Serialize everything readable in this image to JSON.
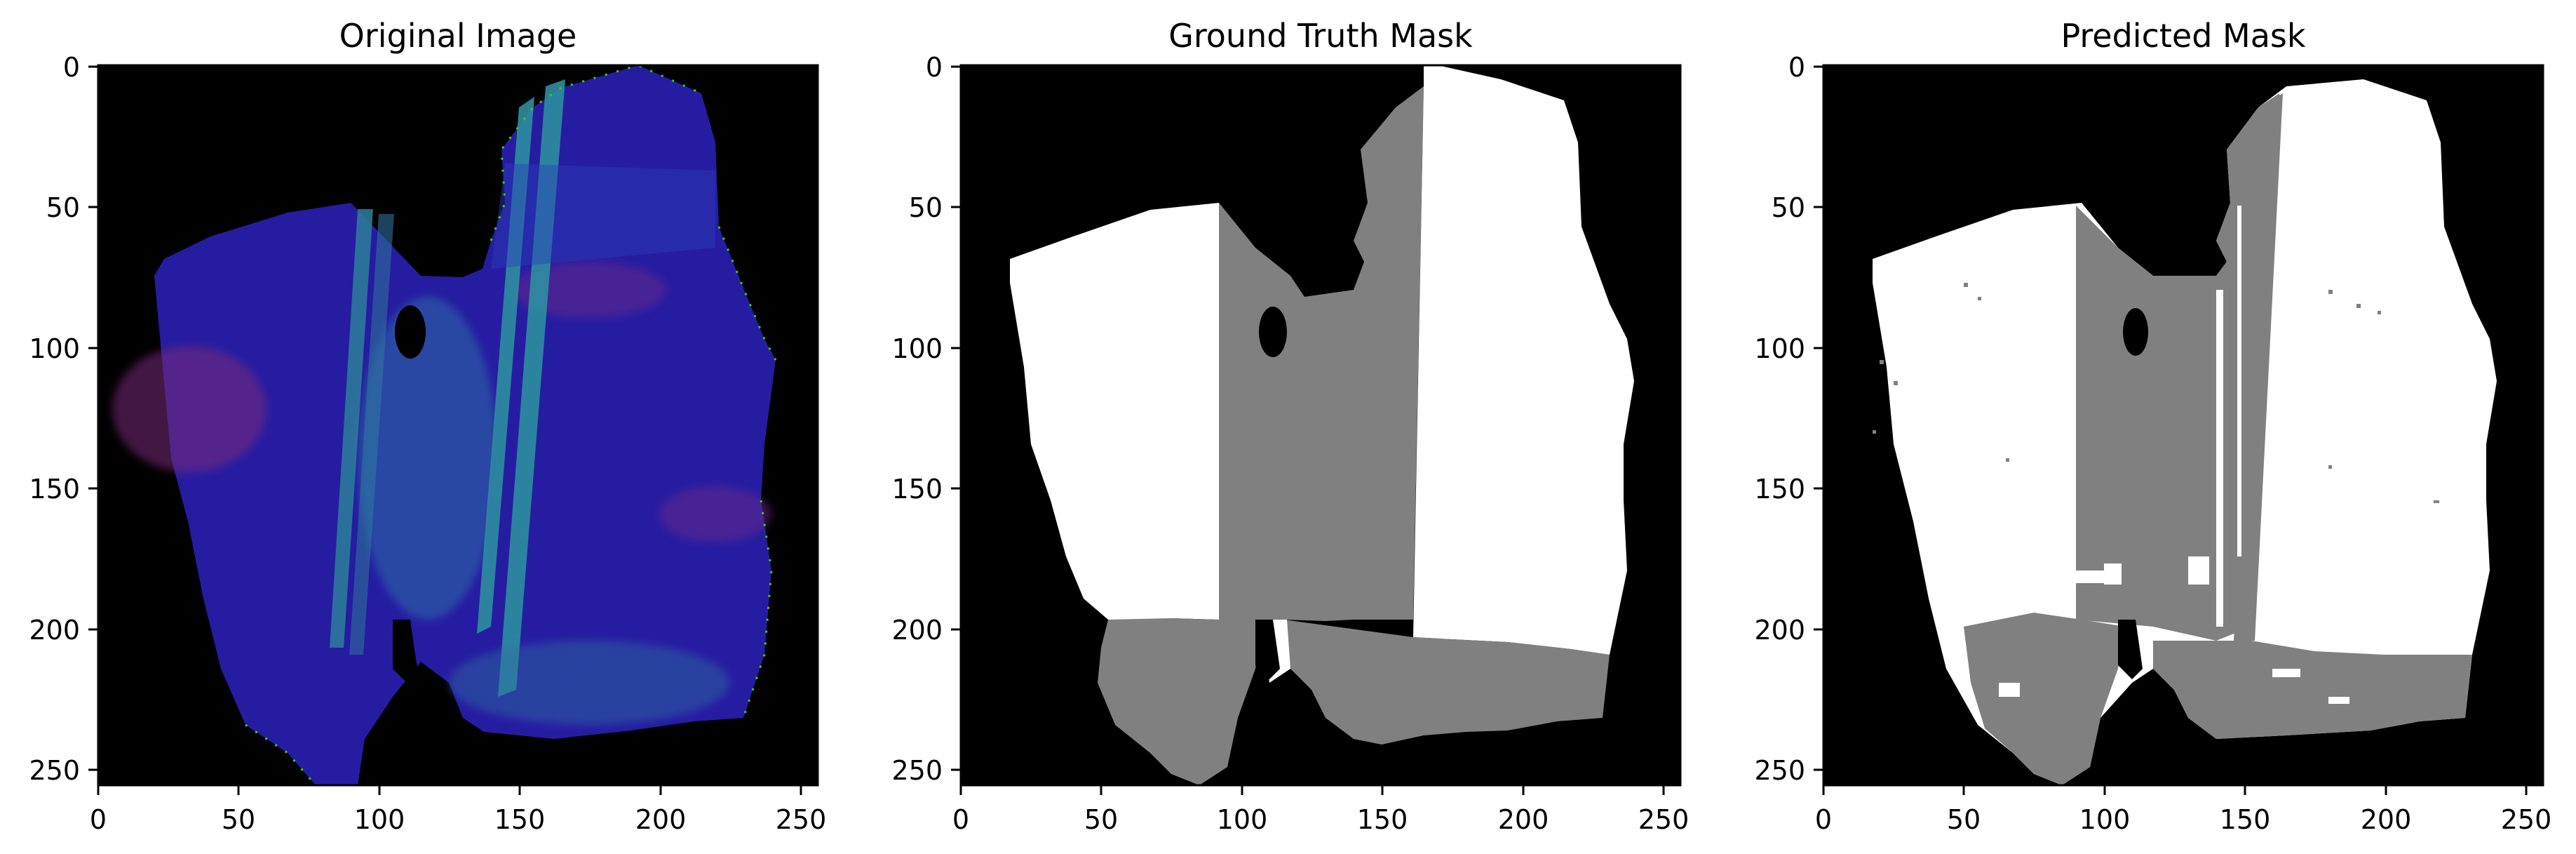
{
  "figure": {
    "panels": [
      {
        "id": "original",
        "title": "Original Image",
        "kind": "rgb",
        "x_ticks": [
          "0",
          "50",
          "100",
          "150",
          "200",
          "250"
        ],
        "y_ticks": [
          "0",
          "50",
          "100",
          "150",
          "200",
          "250"
        ]
      },
      {
        "id": "gt",
        "title": "Ground Truth Mask",
        "kind": "mask",
        "x_ticks": [
          "0",
          "50",
          "100",
          "150",
          "200",
          "250"
        ],
        "y_ticks": [
          "0",
          "50",
          "100",
          "150",
          "200",
          "250"
        ]
      },
      {
        "id": "pred",
        "title": "Predicted Mask",
        "kind": "mask-noisy",
        "x_ticks": [
          "0",
          "50",
          "100",
          "150",
          "200",
          "250"
        ],
        "y_ticks": [
          "0",
          "50",
          "100",
          "150",
          "200",
          "250"
        ]
      }
    ],
    "colors": {
      "background": "#000000",
      "mask_white": "#ffffff",
      "mask_gray": "#808080",
      "image_blue": "#2a1fb0",
      "image_stripe": "#2d7f9a",
      "image_magenta": "#6a2a8a",
      "image_edge": "#38d018"
    }
  }
}
